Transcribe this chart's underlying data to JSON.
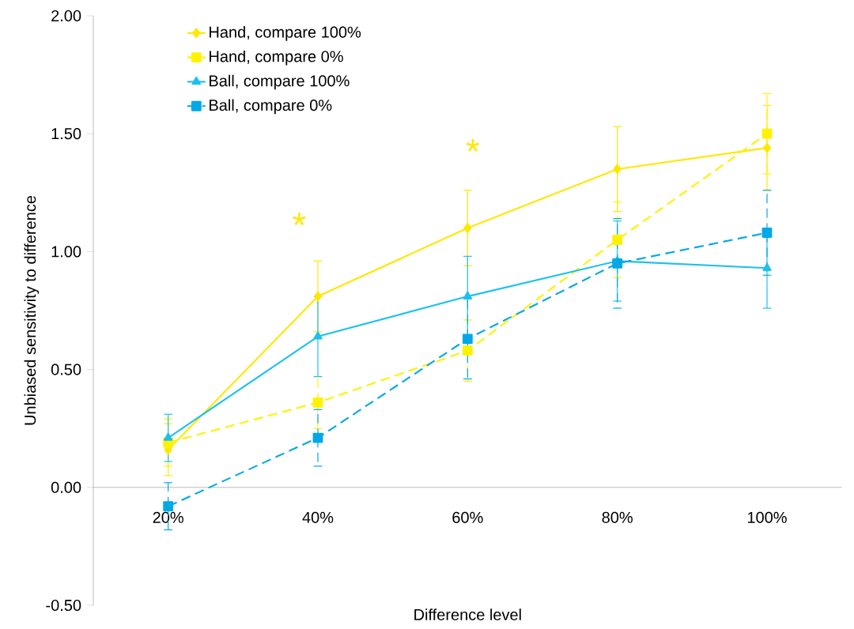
{
  "chart_data": {
    "type": "line",
    "xlabel": "Difference level",
    "ylabel": "Unbiased sensitivity to difference",
    "categories": [
      "20%",
      "40%",
      "60%",
      "80%",
      "100%"
    ],
    "ylim": [
      -0.5,
      2.0
    ],
    "yticks": [
      {
        "value": -0.5,
        "label": "-0.50"
      },
      {
        "value": 0,
        "label": "0.00"
      },
      {
        "value": 0.5,
        "label": "0.50"
      },
      {
        "value": 1.0,
        "label": "1.00"
      },
      {
        "value": 1.5,
        "label": "1.50"
      },
      {
        "value": 2.0,
        "label": "2.00"
      }
    ],
    "grid": false,
    "legend": "top left",
    "series": [
      {
        "name": "Hand, compare 100%",
        "color": "#ffe800",
        "marker": "diamond",
        "line_style": "solid",
        "values": [
          0.16,
          0.81,
          1.1,
          1.35,
          1.44
        ],
        "errors": [
          0.11,
          0.15,
          0.16,
          0.18,
          0.18
        ]
      },
      {
        "name": "Hand, compare 0%",
        "color": "#fff200",
        "marker": "square",
        "line_style": "dashed",
        "values": [
          0.19,
          0.36,
          0.58,
          1.05,
          1.5
        ],
        "errors": [
          0.1,
          0.11,
          0.13,
          0.16,
          0.17
        ]
      },
      {
        "name": "Ball, compare 100%",
        "color": "#1cc0f0",
        "marker": "triangle",
        "line_style": "solid",
        "values": [
          0.21,
          0.64,
          0.81,
          0.96,
          0.93
        ],
        "errors": [
          0.1,
          0.17,
          0.17,
          0.17,
          0.17
        ]
      },
      {
        "name": "Ball, compare 0%",
        "color": "#00a8e8",
        "marker": "square",
        "line_style": "dashed",
        "values": [
          -0.08,
          0.21,
          0.63,
          0.95,
          1.08
        ],
        "errors": [
          0.1,
          0.12,
          0.17,
          0.19,
          0.18
        ]
      }
    ],
    "annotations": [
      "*",
      "*"
    ]
  }
}
